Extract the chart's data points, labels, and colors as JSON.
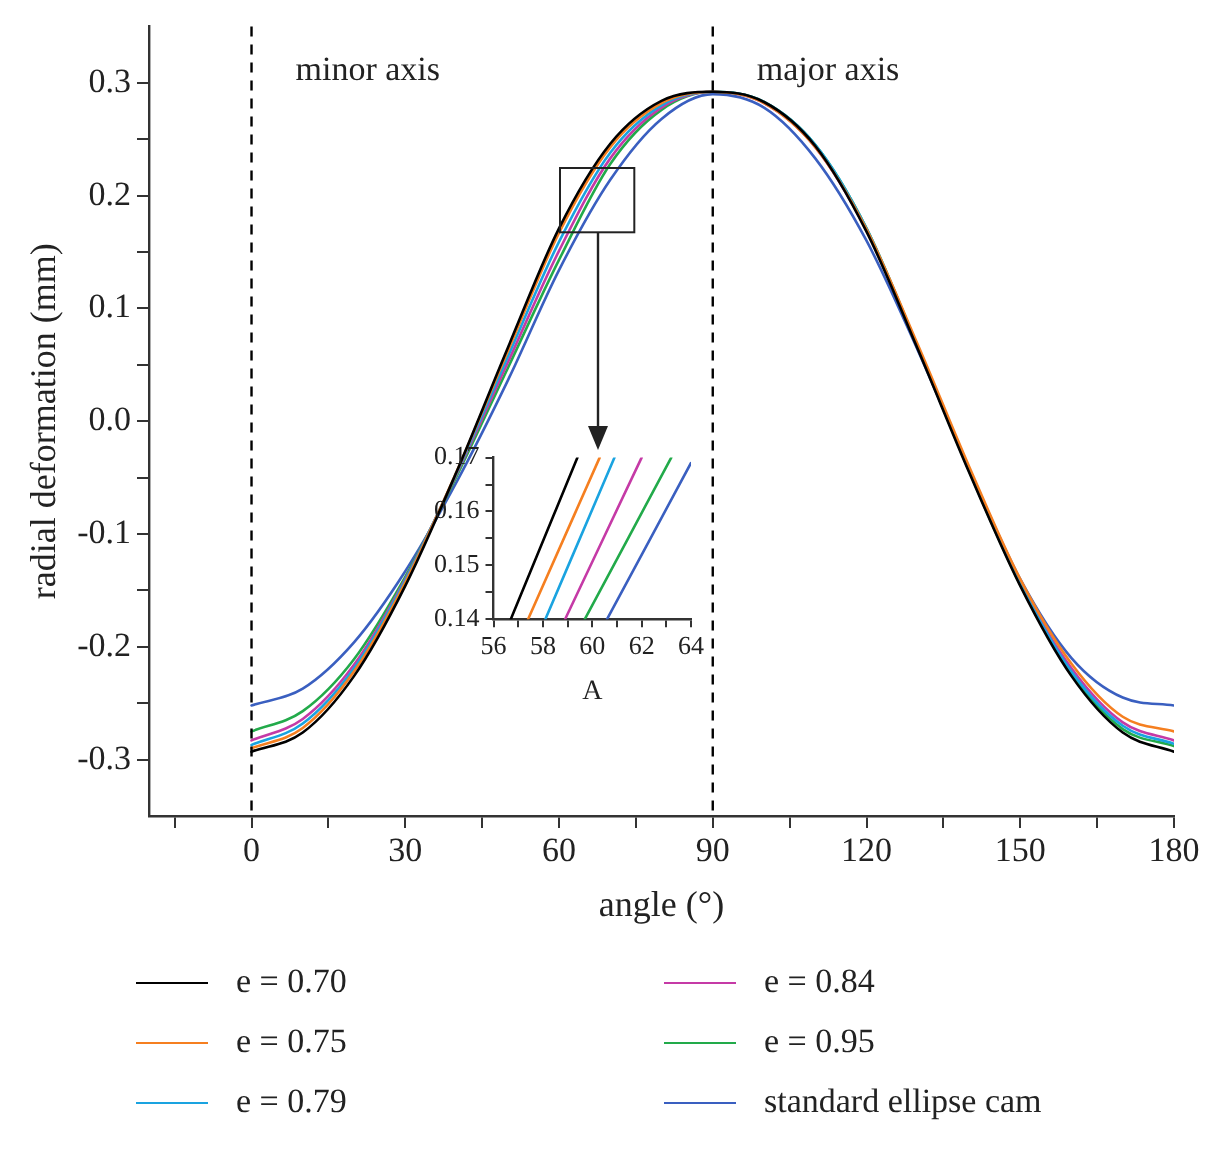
{
  "chart_data": [
    {
      "type": "line",
      "xlabel": "angle (°)",
      "ylabel": "radial deformation (mm)",
      "x": [
        0,
        10,
        20,
        30,
        40,
        50,
        60,
        70,
        80,
        90,
        100,
        110,
        120,
        130,
        140,
        150,
        160,
        170,
        180
      ],
      "xlim": [
        -20,
        180
      ],
      "xticks": [
        {
          "value": -15,
          "label": null
        },
        0,
        {
          "value": 15,
          "label": null
        },
        30,
        {
          "value": 45,
          "label": null
        },
        60,
        {
          "value": 75,
          "label": null
        },
        90,
        {
          "value": 105,
          "label": null
        },
        120,
        {
          "value": 135,
          "label": null
        },
        150,
        {
          "value": 165,
          "label": null
        },
        180
      ],
      "ylim": [
        -0.35,
        0.35
      ],
      "yticks": [
        -0.3,
        {
          "value": -0.25,
          "label": null
        },
        -0.2,
        {
          "value": -0.15,
          "label": null
        },
        -0.1,
        {
          "value": -0.05,
          "label": null
        },
        {
          "value": 0,
          "label": "0.0"
        },
        {
          "value": 0.05,
          "label": null
        },
        0.1,
        {
          "value": 0.15,
          "label": null
        },
        0.2,
        {
          "value": 0.25,
          "label": null
        },
        0.3
      ],
      "series": [
        {
          "name": "e = 0.70",
          "color": "#000000",
          "values": [
            -0.293,
            -0.276,
            -0.226,
            -0.146,
            -0.045,
            0.065,
            0.171,
            0.246,
            0.284,
            0.292,
            0.283,
            0.244,
            0.168,
            0.064,
            -0.045,
            -0.146,
            -0.226,
            -0.276,
            -0.293
          ]
        },
        {
          "name": "e = 0.75",
          "color": "#f57f20",
          "values": [
            -0.29,
            -0.272,
            -0.222,
            -0.143,
            -0.045,
            0.062,
            0.167,
            0.243,
            0.282,
            0.292,
            0.282,
            0.243,
            0.17,
            0.068,
            -0.04,
            -0.14,
            -0.215,
            -0.262,
            -0.275
          ]
        },
        {
          "name": "e = 0.79",
          "color": "#1aa3e0",
          "values": [
            -0.287,
            -0.268,
            -0.219,
            -0.141,
            -0.046,
            0.057,
            0.159,
            0.238,
            0.28,
            0.292,
            0.283,
            0.245,
            0.171,
            0.066,
            -0.043,
            -0.144,
            -0.222,
            -0.27,
            -0.286
          ]
        },
        {
          "name": "e = 0.84",
          "color": "#c53aa6",
          "values": [
            -0.283,
            -0.264,
            -0.216,
            -0.14,
            -0.047,
            0.052,
            0.151,
            0.233,
            0.278,
            0.292,
            0.282,
            0.243,
            0.169,
            0.066,
            -0.042,
            -0.143,
            -0.219,
            -0.267,
            -0.283
          ]
        },
        {
          "name": "e = 0.95",
          "color": "#22aa4a",
          "values": [
            -0.275,
            -0.257,
            -0.211,
            -0.138,
            -0.049,
            0.047,
            0.143,
            0.228,
            0.276,
            0.292,
            0.283,
            0.245,
            0.171,
            0.066,
            -0.044,
            -0.145,
            -0.224,
            -0.273,
            -0.288
          ]
        },
        {
          "name": "standard ellipse cam",
          "color": "#3a5fc0",
          "values": [
            -0.252,
            -0.237,
            -0.196,
            -0.133,
            -0.054,
            0.036,
            0.134,
            0.214,
            0.268,
            0.29,
            0.278,
            0.233,
            0.16,
            0.063,
            -0.042,
            -0.14,
            -0.21,
            -0.245,
            -0.252
          ]
        }
      ],
      "ref_lines": [
        {
          "axis": "x",
          "value": 0,
          "label": "minor axis",
          "color": "#000000",
          "line_style": "dashed"
        },
        {
          "axis": "x",
          "value": 90,
          "label": "major axis",
          "color": "#000000",
          "line_style": "dashed"
        }
      ],
      "legend": "bottom"
    },
    {
      "type": "line",
      "xlabel": "A",
      "xlim": [
        56,
        64
      ],
      "xticks": [
        56,
        {
          "value": 57,
          "label": null
        },
        58,
        {
          "value": 59,
          "label": null
        },
        60,
        {
          "value": 61,
          "label": null
        },
        62,
        {
          "value": 63,
          "label": null
        },
        64
      ],
      "ylim": [
        0.14,
        0.17
      ],
      "yticks": [
        0.14,
        {
          "value": 0.145,
          "label": null
        },
        0.15,
        {
          "value": 0.155,
          "label": null
        },
        0.16,
        {
          "value": 0.165,
          "label": null
        },
        0.17
      ],
      "series": [
        {
          "color": "#000000",
          "x": [
            56.7,
            59.4
          ],
          "values": [
            0.14,
            0.17
          ]
        },
        {
          "color": "#f57f20",
          "x": [
            57.4,
            60.3
          ],
          "values": [
            0.14,
            0.17
          ]
        },
        {
          "color": "#1aa3e0",
          "x": [
            58.1,
            60.9
          ],
          "values": [
            0.14,
            0.17
          ]
        },
        {
          "color": "#c53aa6",
          "x": [
            58.9,
            62.0
          ],
          "values": [
            0.14,
            0.17
          ]
        },
        {
          "color": "#22aa4a",
          "x": [
            59.7,
            63.2
          ],
          "values": [
            0.14,
            0.17
          ]
        },
        {
          "color": "#3a5fc0",
          "x": [
            60.6,
            64
          ],
          "values": [
            0.14,
            0.169
          ]
        }
      ]
    }
  ]
}
